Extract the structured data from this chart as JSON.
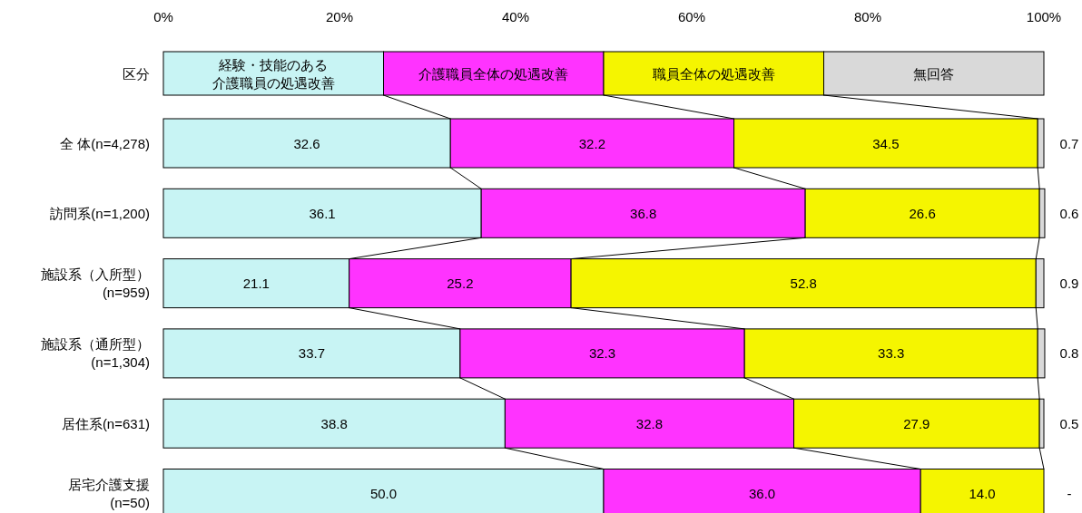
{
  "chart_data": {
    "type": "bar",
    "orientation": "horizontal",
    "stacked": true,
    "legend": "top",
    "legend_title": "区分",
    "categories": [
      "全 体(n=4,278)",
      "訪問系(n=1,200)",
      "施設系（入所型）\n(n=959)",
      "施設系（通所型）\n(n=1,304)",
      "居住系(n=631)",
      "居宅介護支援\n(n=50)"
    ],
    "xlim": [
      0,
      100
    ],
    "xticks": [
      {
        "value": 0,
        "label": "0%"
      },
      {
        "value": 20,
        "label": "20%"
      },
      {
        "value": 40,
        "label": "40%"
      },
      {
        "value": 60,
        "label": "60%"
      },
      {
        "value": 80,
        "label": "80%"
      },
      {
        "value": 100,
        "label": "100%"
      }
    ],
    "series": [
      {
        "name": "経験・技能のある介護職員の処遇改善",
        "color": "#c8f4f4",
        "values": [
          32.6,
          36.1,
          21.1,
          33.7,
          38.8,
          50.0
        ],
        "value_labels": [
          "32.6",
          "36.1",
          "21.1",
          "33.7",
          "38.8",
          "50.0"
        ]
      },
      {
        "name": "介護職員全体の処遇改善",
        "color": "#ff33ff",
        "values": [
          32.2,
          36.8,
          25.2,
          32.3,
          32.8,
          36.0
        ],
        "value_labels": [
          "32.2",
          "36.8",
          "25.2",
          "32.3",
          "32.8",
          "36.0"
        ]
      },
      {
        "name": "職員全体の処遇改善",
        "color": "#f5f500",
        "values": [
          34.5,
          26.6,
          52.8,
          33.3,
          27.9,
          14.0
        ],
        "value_labels": [
          "34.5",
          "26.6",
          "52.8",
          "33.3",
          "27.9",
          "14.0"
        ]
      },
      {
        "name": "無回答",
        "color": "#d9d9d9",
        "values": [
          0.7,
          0.6,
          0.9,
          0.8,
          0.5,
          null
        ],
        "value_labels": [
          "0.7",
          "0.6",
          "0.9",
          "0.8",
          "0.5",
          "-"
        ]
      }
    ]
  }
}
